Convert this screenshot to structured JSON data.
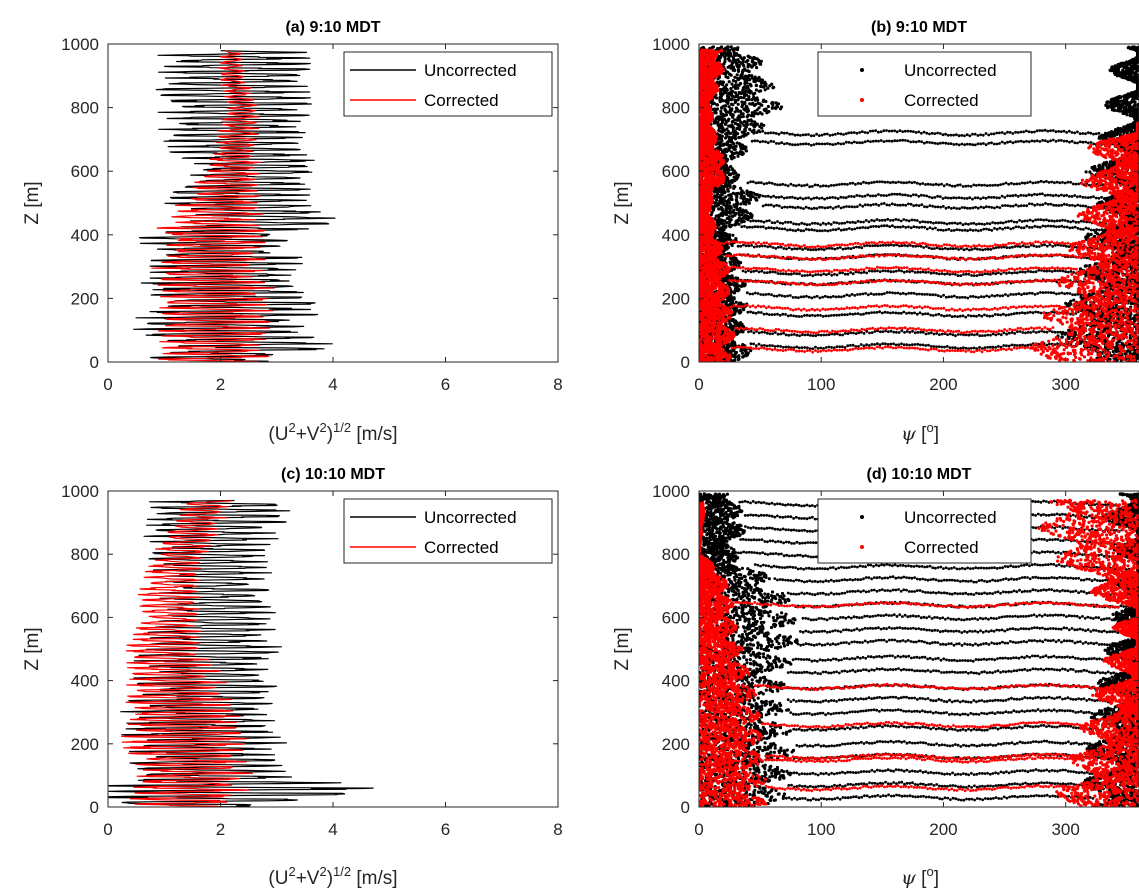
{
  "chart_data": [
    {
      "panel": "a",
      "type": "line",
      "title": "(a) 9:10 MDT",
      "xlabel": {
        "base": "(U",
        "sup1": "2",
        "mid": "+V",
        "sup2": "2",
        "close": ")",
        "sup3": "1/2",
        "unit": " [m/s]"
      },
      "ylabel": "Z [m]",
      "xlim": [
        0,
        8
      ],
      "ylim": [
        0,
        1000
      ],
      "xticks": [
        "0",
        "2",
        "4",
        "6",
        "8"
      ],
      "yticks": [
        "0",
        "200",
        "400",
        "600",
        "800",
        "1000"
      ],
      "legend": {
        "location": "top-right",
        "style": "line"
      },
      "series": [
        {
          "name": "Uncorrected",
          "color": "#000000",
          "profile": [
            [
              0,
              1.7
            ],
            [
              50,
              2.6
            ],
            [
              100,
              2.0
            ],
            [
              150,
              2.2
            ],
            [
              200,
              2.4
            ],
            [
              250,
              2.0
            ],
            [
              300,
              2.2
            ],
            [
              350,
              2.0
            ],
            [
              400,
              1.9
            ],
            [
              450,
              2.9
            ],
            [
              500,
              2.3
            ],
            [
              550,
              2.3
            ],
            [
              600,
              2.8
            ],
            [
              650,
              2.4
            ],
            [
              700,
              2.2
            ],
            [
              750,
              2.2
            ],
            [
              800,
              2.3
            ],
            [
              850,
              2.2
            ],
            [
              900,
              2.4
            ],
            [
              950,
              2.3
            ],
            [
              980,
              2.2
            ]
          ],
          "spread": [
            [
              0,
              1.3
            ],
            [
              100,
              1.7
            ],
            [
              200,
              1.6
            ],
            [
              300,
              1.5
            ],
            [
              400,
              1.4
            ],
            [
              500,
              1.5
            ],
            [
              600,
              1.2
            ],
            [
              700,
              1.4
            ],
            [
              800,
              1.4
            ],
            [
              900,
              1.5
            ],
            [
              980,
              1.3
            ]
          ]
        },
        {
          "name": "Corrected",
          "color": "#ff0000",
          "profile": [
            [
              0,
              1.9
            ],
            [
              100,
              1.9
            ],
            [
              200,
              1.9
            ],
            [
              300,
              1.8
            ],
            [
              400,
              1.8
            ],
            [
              500,
              2.0
            ],
            [
              600,
              2.2
            ],
            [
              700,
              2.3
            ],
            [
              800,
              2.4
            ],
            [
              900,
              2.2
            ],
            [
              980,
              2.2
            ]
          ],
          "spread": [
            [
              0,
              1.0
            ],
            [
              200,
              1.1
            ],
            [
              400,
              1.0
            ],
            [
              500,
              0.8
            ],
            [
              600,
              0.5
            ],
            [
              700,
              0.4
            ],
            [
              800,
              0.3
            ],
            [
              900,
              0.25
            ],
            [
              980,
              0.2
            ]
          ]
        }
      ]
    },
    {
      "panel": "b",
      "type": "scatter",
      "title": "(b) 9:10 MDT",
      "xlabel": {
        "symbol": "ψ",
        "open": " [",
        "sup": "o",
        "close": "]"
      },
      "ylabel": "Z [m]",
      "xlim": [
        0,
        360
      ],
      "ylim": [
        0,
        1000
      ],
      "xticks": [
        "0",
        "100",
        "200",
        "300"
      ],
      "yticks": [
        "0",
        "200",
        "400",
        "600",
        "800",
        "1000"
      ],
      "legend": {
        "location": "top-center",
        "style": "marker"
      },
      "series": [
        {
          "name": "Uncorrected",
          "color": "#000000",
          "left_edge": [
            [
              0,
              45
            ],
            [
              100,
              40
            ],
            [
              200,
              40
            ],
            [
              300,
              35
            ],
            [
              400,
              30
            ],
            [
              500,
              55
            ],
            [
              600,
              30
            ],
            [
              700,
              45
            ],
            [
              800,
              70
            ],
            [
              900,
              60
            ],
            [
              990,
              45
            ]
          ],
          "right_edge": [
            [
              0,
              315
            ],
            [
              100,
              305
            ],
            [
              200,
              315
            ],
            [
              300,
              325
            ],
            [
              400,
              330
            ],
            [
              500,
              340
            ],
            [
              600,
              330
            ],
            [
              700,
              340
            ],
            [
              800,
              345
            ],
            [
              900,
              350
            ],
            [
              990,
              345
            ]
          ],
          "bands": [
            50,
            90,
            150,
            210,
            250,
            280,
            330,
            360,
            420,
            440,
            490,
            520,
            560,
            690,
            720
          ]
        },
        {
          "name": "Corrected",
          "color": "#ff0000",
          "left_edge": [
            [
              0,
              25
            ],
            [
              100,
              30
            ],
            [
              200,
              25
            ],
            [
              300,
              25
            ],
            [
              400,
              15
            ],
            [
              500,
              10
            ],
            [
              600,
              25
            ],
            [
              700,
              15
            ],
            [
              800,
              10
            ],
            [
              900,
              20
            ],
            [
              980,
              20
            ]
          ],
          "right_edge": [
            [
              0,
              280
            ],
            [
              100,
              290
            ],
            [
              200,
              300
            ],
            [
              300,
              310
            ],
            [
              400,
              320
            ],
            [
              500,
              325
            ],
            [
              600,
              325
            ],
            [
              700,
              335
            ],
            [
              750,
              360
            ]
          ],
          "bands": [
            40,
            100,
            170,
            250,
            290,
            330,
            370
          ]
        }
      ]
    },
    {
      "panel": "c",
      "type": "line",
      "title": "(c) 10:10 MDT",
      "xlabel": {
        "base": "(U",
        "sup1": "2",
        "mid": "+V",
        "sup2": "2",
        "close": ")",
        "sup3": "1/2",
        "unit": " [m/s]"
      },
      "ylabel": "Z [m]",
      "xlim": [
        0,
        8
      ],
      "ylim": [
        0,
        1000
      ],
      "xticks": [
        "0",
        "2",
        "4",
        "6",
        "8"
      ],
      "yticks": [
        "0",
        "200",
        "400",
        "600",
        "800",
        "1000"
      ],
      "legend": {
        "location": "top-right",
        "style": "line"
      },
      "series": [
        {
          "name": "Uncorrected",
          "color": "#000000",
          "profile": [
            [
              0,
              1.5
            ],
            [
              50,
              2.2
            ],
            [
              100,
              1.8
            ],
            [
              200,
              1.7
            ],
            [
              300,
              1.6
            ],
            [
              400,
              1.7
            ],
            [
              500,
              1.8
            ],
            [
              600,
              1.9
            ],
            [
              700,
              1.9
            ],
            [
              800,
              1.8
            ],
            [
              900,
              1.9
            ],
            [
              970,
              2.0
            ]
          ],
          "spread": [
            [
              0,
              1.2
            ],
            [
              50,
              3.3
            ],
            [
              100,
              1.4
            ],
            [
              200,
              1.5
            ],
            [
              300,
              1.4
            ],
            [
              400,
              1.3
            ],
            [
              500,
              1.3
            ],
            [
              600,
              1.1
            ],
            [
              700,
              1.0
            ],
            [
              800,
              1.1
            ],
            [
              900,
              1.3
            ],
            [
              970,
              1.4
            ]
          ]
        },
        {
          "name": "Corrected",
          "color": "#ff0000",
          "profile": [
            [
              0,
              1.4
            ],
            [
              100,
              1.5
            ],
            [
              200,
              1.4
            ],
            [
              300,
              1.3
            ],
            [
              400,
              1.2
            ],
            [
              500,
              1.0
            ],
            [
              600,
              1.1
            ],
            [
              700,
              1.1
            ],
            [
              800,
              1.3
            ],
            [
              900,
              1.6
            ],
            [
              970,
              1.8
            ]
          ],
          "spread": [
            [
              0,
              1.0
            ],
            [
              200,
              1.2
            ],
            [
              400,
              0.9
            ],
            [
              600,
              0.6
            ],
            [
              800,
              0.5
            ],
            [
              900,
              0.5
            ],
            [
              970,
              0.4
            ]
          ]
        }
      ]
    },
    {
      "panel": "d",
      "type": "scatter",
      "title": "(d) 10:10 MDT",
      "xlabel": {
        "symbol": "ψ",
        "open": " [",
        "sup": "o",
        "close": "]"
      },
      "ylabel": "Z [m]",
      "xlim": [
        0,
        360
      ],
      "ylim": [
        0,
        1000
      ],
      "xticks": [
        "0",
        "100",
        "200",
        "300"
      ],
      "yticks": [
        "0",
        "200",
        "400",
        "600",
        "800",
        "1000"
      ],
      "legend": {
        "location": "top-center",
        "style": "marker"
      },
      "series": [
        {
          "name": "Uncorrected",
          "color": "#000000",
          "left_edge": [
            [
              0,
              70
            ],
            [
              100,
              75
            ],
            [
              200,
              80
            ],
            [
              300,
              75
            ],
            [
              400,
              70
            ],
            [
              500,
              80
            ],
            [
              600,
              85
            ],
            [
              700,
              70
            ],
            [
              800,
              30
            ],
            [
              900,
              40
            ],
            [
              990,
              30
            ]
          ],
          "right_edge": [
            [
              0,
              320
            ],
            [
              100,
              330
            ],
            [
              200,
              330
            ],
            [
              300,
              335
            ],
            [
              400,
              340
            ],
            [
              500,
              345
            ],
            [
              600,
              350
            ],
            [
              700,
              355
            ],
            [
              800,
              355
            ],
            [
              900,
              345
            ],
            [
              990,
              340
            ]
          ],
          "bands": [
            30,
            70,
            110,
            160,
            200,
            250,
            300,
            340,
            380,
            430,
            470,
            520,
            560,
            600,
            640,
            680,
            720,
            760,
            800,
            840,
            880,
            920,
            960
          ]
        },
        {
          "name": "Corrected",
          "color": "#ff0000",
          "left_edge": [
            [
              0,
              55
            ],
            [
              100,
              55
            ],
            [
              200,
              55
            ],
            [
              300,
              50
            ],
            [
              400,
              45
            ],
            [
              500,
              35
            ],
            [
              600,
              30
            ],
            [
              700,
              25
            ],
            [
              760,
              15
            ],
            [
              800,
              0
            ],
            [
              960,
              5
            ]
          ],
          "right_edge": [
            [
              0,
              300
            ],
            [
              100,
              310
            ],
            [
              200,
              320
            ],
            [
              300,
              330
            ],
            [
              400,
              340
            ],
            [
              600,
              355
            ],
            [
              800,
              300
            ],
            [
              900,
              290
            ],
            [
              970,
              290
            ]
          ],
          "bands": [
            60,
            150,
            160,
            260,
            380,
            640
          ]
        }
      ]
    }
  ]
}
